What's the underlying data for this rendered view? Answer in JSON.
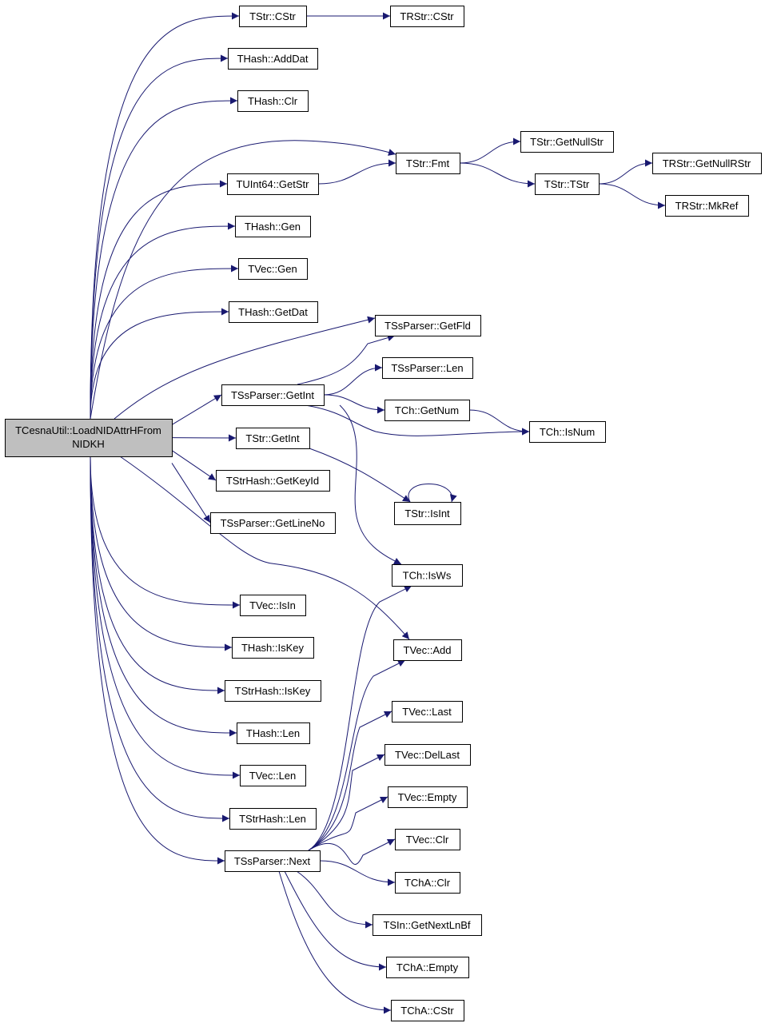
{
  "graph": {
    "type": "call-graph",
    "colors": {
      "edge": "#191970",
      "root_fill": "#bfbfbf",
      "node_fill": "#ffffff",
      "border": "#000000"
    },
    "nodes": {
      "root": [
        "TCesnaUtil::LoadNIDAttrHFrom",
        "NIDKH"
      ],
      "tstr_cstr": "TStr::CStr",
      "thash_adddat": "THash::AddDat",
      "thash_clr": "THash::Clr",
      "tuint64_getstr": "TUInt64::GetStr",
      "thash_gen": "THash::Gen",
      "tvec_gen": "TVec::Gen",
      "thash_getdat": "THash::GetDat",
      "tssparser_getint": "TSsParser::GetInt",
      "tstr_getint": "TStr::GetInt",
      "tstrhash_getkeyid": "TStrHash::GetKeyId",
      "tssparser_getlineno": "TSsParser::GetLineNo",
      "tvec_isin": "TVec::IsIn",
      "thash_iskey": "THash::IsKey",
      "tstrhash_iskey": "TStrHash::IsKey",
      "thash_len": "THash::Len",
      "tvec_len": "TVec::Len",
      "tstrhash_len": "TStrHash::Len",
      "tssparser_next": "TSsParser::Next",
      "trstr_cstr": "TRStr::CStr",
      "tstr_fmt": "TStr::Fmt",
      "tssparser_getfld": "TSsParser::GetFld",
      "tssparser_len": "TSsParser::Len",
      "tch_getnum": "TCh::GetNum",
      "tstr_isint": "TStr::IsInt",
      "tch_isws": "TCh::IsWs",
      "tvec_add": "TVec::Add",
      "tvec_last": "TVec::Last",
      "tvec_dellast": "TVec::DelLast",
      "tvec_empty": "TVec::Empty",
      "tvec_clr": "TVec::Clr",
      "tcha_clr": "TChA::Clr",
      "tsin_getnextlnbf": "TSIn::GetNextLnBf",
      "tcha_empty": "TChA::Empty",
      "tcha_cstr": "TChA::CStr",
      "tstr_getnullstr": "TStr::GetNullStr",
      "tstr_tstr": "TStr::TStr",
      "tch_isnum": "TCh::IsNum",
      "trstr_getnullrstr": "TRStr::GetNullRStr",
      "trstr_mkref": "TRStr::MkRef"
    },
    "edges": [
      [
        "root",
        "tstr_cstr"
      ],
      [
        "root",
        "thash_adddat"
      ],
      [
        "root",
        "thash_clr"
      ],
      [
        "root",
        "tstr_fmt"
      ],
      [
        "root",
        "tuint64_getstr"
      ],
      [
        "root",
        "thash_gen"
      ],
      [
        "root",
        "tvec_gen"
      ],
      [
        "root",
        "thash_getdat"
      ],
      [
        "root",
        "tssparser_getfld"
      ],
      [
        "root",
        "tssparser_getint"
      ],
      [
        "root",
        "tstr_getint"
      ],
      [
        "root",
        "tstrhash_getkeyid"
      ],
      [
        "root",
        "tssparser_getlineno"
      ],
      [
        "root",
        "tvec_add"
      ],
      [
        "root",
        "tvec_isin"
      ],
      [
        "root",
        "thash_iskey"
      ],
      [
        "root",
        "tstrhash_iskey"
      ],
      [
        "root",
        "thash_len"
      ],
      [
        "root",
        "tvec_len"
      ],
      [
        "root",
        "tstrhash_len"
      ],
      [
        "root",
        "tssparser_next"
      ],
      [
        "tstr_cstr",
        "trstr_cstr"
      ],
      [
        "tuint64_getstr",
        "tstr_fmt"
      ],
      [
        "tstr_fmt",
        "tstr_getnullstr"
      ],
      [
        "tstr_fmt",
        "tstr_tstr"
      ],
      [
        "tstr_tstr",
        "trstr_getnullrstr"
      ],
      [
        "tstr_tstr",
        "trstr_mkref"
      ],
      [
        "tssparser_getint",
        "tssparser_getfld"
      ],
      [
        "tssparser_getint",
        "tssparser_len"
      ],
      [
        "tssparser_getint",
        "tch_getnum"
      ],
      [
        "tssparser_getint",
        "tch_isnum"
      ],
      [
        "tssparser_getint",
        "tch_isws"
      ],
      [
        "tch_getnum",
        "tch_isnum"
      ],
      [
        "tstr_getint",
        "tstr_isint"
      ],
      [
        "tstr_isint",
        "tstr_isint"
      ],
      [
        "tssparser_next",
        "tch_isws"
      ],
      [
        "tssparser_next",
        "tvec_add"
      ],
      [
        "tssparser_next",
        "tvec_last"
      ],
      [
        "tssparser_next",
        "tvec_dellast"
      ],
      [
        "tssparser_next",
        "tvec_empty"
      ],
      [
        "tssparser_next",
        "tvec_clr"
      ],
      [
        "tssparser_next",
        "tcha_clr"
      ],
      [
        "tssparser_next",
        "tsin_getnextlnbf"
      ],
      [
        "tssparser_next",
        "tcha_empty"
      ],
      [
        "tssparser_next",
        "tcha_cstr"
      ]
    ]
  }
}
